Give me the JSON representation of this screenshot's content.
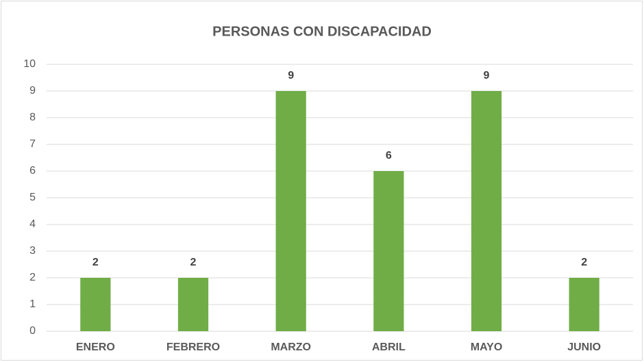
{
  "chart_data": {
    "type": "bar",
    "title": "PERSONAS CON DISCAPACIDAD",
    "categories": [
      "ENERO",
      "FEBRERO",
      "MARZO",
      "ABRIL",
      "MAYO",
      "JUNIO"
    ],
    "values": [
      2,
      2,
      9,
      6,
      9,
      2
    ],
    "color": "#70ad47",
    "ylim": [
      0,
      10
    ],
    "yticks": [
      0,
      1,
      2,
      3,
      4,
      5,
      6,
      7,
      8,
      9,
      10
    ],
    "grid": true,
    "data_labels": true
  }
}
